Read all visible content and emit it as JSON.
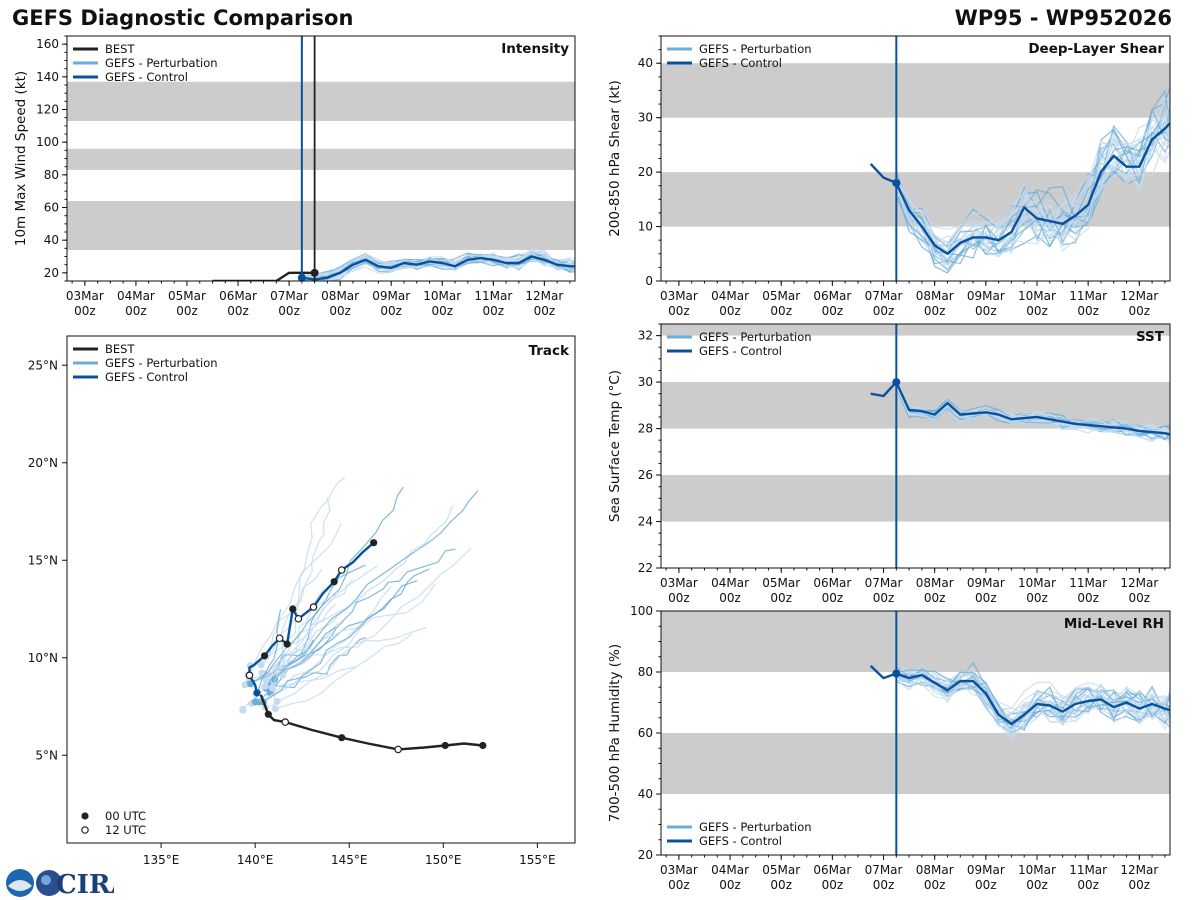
{
  "header": {
    "title": "GEFS Diagnostic Comparison",
    "storm_id": "WP95 - WP952026"
  },
  "logo": {
    "text": "CIRA"
  },
  "colors": {
    "best": "#222222",
    "perturbation": "#6baed6",
    "perturbation_light": "#c6dbef",
    "control": "#08519c",
    "band": "#cccccc"
  },
  "time_axis": {
    "categories": [
      "03Mar 00z",
      "04Mar 00z",
      "05Mar 00z",
      "06Mar 00z",
      "07Mar 00z",
      "08Mar 00z",
      "09Mar 00z",
      "10Mar 00z",
      "11Mar 00z",
      "12Mar 00z"
    ],
    "day_labels": [
      "03Mar",
      "04Mar",
      "05Mar",
      "06Mar",
      "07Mar",
      "08Mar",
      "09Mar",
      "10Mar",
      "11Mar",
      "12Mar"
    ],
    "hour_label": "00z",
    "range_days": [
      -0.35,
      9.6
    ],
    "current_time_day": 4.25,
    "best_end_day": 4.5
  },
  "chart_data": [
    {
      "id": "intensity",
      "type": "line",
      "title": "Intensity",
      "ylabel": "10m Max Wind Speed (kt)",
      "ylim": [
        15,
        165
      ],
      "yticks": [
        20,
        40,
        60,
        80,
        100,
        120,
        140,
        160
      ],
      "bands": [
        [
          34,
          64
        ],
        [
          83,
          96
        ],
        [
          113,
          137
        ]
      ],
      "legend": [
        "BEST",
        "GEFS - Perturbation",
        "GEFS - Control"
      ],
      "series": [
        {
          "name": "BEST",
          "x": [
            2.5,
            2.75,
            3,
            3.25,
            3.5,
            3.75,
            4,
            4.25,
            4.5
          ],
          "values": [
            15,
            15,
            15,
            15,
            15,
            15,
            20,
            20,
            20
          ]
        },
        {
          "name": "GEFS - Control",
          "x": [
            4.25,
            4.5,
            4.75,
            5,
            5.25,
            5.5,
            5.75,
            6,
            6.25,
            6.5,
            6.75,
            7,
            7.25,
            7.5,
            7.75,
            8,
            8.25,
            8.5,
            8.75,
            9,
            9.25,
            9.5,
            9.6
          ],
          "values": [
            17,
            16,
            17,
            20,
            25,
            28,
            24,
            23,
            26,
            25,
            27,
            26,
            24,
            28,
            29,
            28,
            26,
            26,
            30,
            28,
            25,
            24,
            24
          ]
        }
      ]
    },
    {
      "id": "shear",
      "type": "line",
      "title": "Deep-Layer Shear",
      "ylabel": "200-850 hPa Shear (kt)",
      "ylim": [
        0,
        45
      ],
      "yticks": [
        0,
        10,
        20,
        30,
        40
      ],
      "bands": [
        [
          10,
          20
        ],
        [
          30,
          40
        ]
      ],
      "legend": [
        "GEFS - Perturbation",
        "GEFS - Control"
      ],
      "series": [
        {
          "name": "GEFS - Control",
          "x": [
            3.75,
            4,
            4.25,
            4.5,
            4.75,
            5,
            5.25,
            5.5,
            5.75,
            6,
            6.25,
            6.5,
            6.75,
            7,
            7.25,
            7.5,
            7.75,
            8,
            8.25,
            8.5,
            8.75,
            9,
            9.25,
            9.5,
            9.6
          ],
          "values": [
            21.5,
            19,
            18,
            13,
            10,
            6.5,
            5,
            7,
            8,
            8,
            7.5,
            9,
            13.5,
            11.5,
            11,
            10.5,
            12,
            14,
            20,
            23,
            21,
            21,
            26,
            28,
            29
          ]
        }
      ]
    },
    {
      "id": "sst",
      "type": "line",
      "title": "SST",
      "ylabel": "Sea Surface Temp (°C)",
      "ylim": [
        22,
        32.5
      ],
      "yticks": [
        22,
        24,
        26,
        28,
        30,
        32
      ],
      "bands": [
        [
          24,
          26
        ],
        [
          28,
          30
        ],
        [
          32,
          34
        ]
      ],
      "legend": [
        "GEFS - Perturbation",
        "GEFS - Control"
      ],
      "series": [
        {
          "name": "GEFS - Control",
          "x": [
            3.75,
            4,
            4.25,
            4.5,
            4.75,
            5,
            5.25,
            5.5,
            5.75,
            6,
            6.25,
            6.5,
            6.75,
            7,
            7.25,
            7.5,
            7.75,
            8,
            8.25,
            8.5,
            8.75,
            9,
            9.25,
            9.5,
            9.6
          ],
          "values": [
            29.5,
            29.4,
            30,
            28.8,
            28.75,
            28.6,
            29.1,
            28.6,
            28.65,
            28.7,
            28.6,
            28.4,
            28.45,
            28.5,
            28.4,
            28.3,
            28.2,
            28.15,
            28.1,
            28.05,
            28,
            27.9,
            27.85,
            27.8,
            27.75
          ]
        }
      ]
    },
    {
      "id": "rh",
      "type": "line",
      "title": "Mid-Level RH",
      "ylabel": "700-500 hPa Humidity (%)",
      "ylim": [
        20,
        100
      ],
      "yticks": [
        20,
        40,
        60,
        80,
        100
      ],
      "bands": [
        [
          40,
          60
        ],
        [
          80,
          100
        ]
      ],
      "legend": [
        "GEFS - Perturbation",
        "GEFS - Control"
      ],
      "series": [
        {
          "name": "GEFS - Control",
          "x": [
            3.75,
            4,
            4.25,
            4.5,
            4.75,
            5,
            5.25,
            5.5,
            5.75,
            6,
            6.25,
            6.5,
            6.75,
            7,
            7.25,
            7.5,
            7.75,
            8,
            8.25,
            8.5,
            8.75,
            9,
            9.25,
            9.5,
            9.6
          ],
          "values": [
            82,
            78,
            79.5,
            78,
            79,
            76.5,
            74,
            77,
            77,
            73,
            66,
            63,
            66,
            69.5,
            69,
            67,
            69.5,
            70.5,
            71,
            68.5,
            70,
            68,
            69.5,
            68,
            67.5
          ]
        }
      ]
    },
    {
      "id": "track",
      "type": "scatter",
      "title": "Track",
      "xlim": [
        130,
        157
      ],
      "ylim": [
        0.5,
        26.5
      ],
      "xticks": [
        135,
        140,
        145,
        150,
        155
      ],
      "xticklabels": [
        "135°E",
        "140°E",
        "145°E",
        "150°E",
        "155°E"
      ],
      "yticks": [
        5,
        10,
        15,
        20,
        25
      ],
      "yticklabels": [
        "5°N",
        "10°N",
        "15°N",
        "20°N",
        "25°N"
      ],
      "legend": [
        "BEST",
        "GEFS - Perturbation",
        "GEFS - Control"
      ],
      "marker_legend": [
        "00 UTC",
        "12 UTC"
      ],
      "best_track": {
        "lon": [
          152.1,
          151.1,
          150.1,
          149.0,
          147.6,
          146.0,
          144.6,
          143.0,
          141.6,
          141.0,
          140.7,
          140.5,
          140.3
        ],
        "lat": [
          5.5,
          5.6,
          5.5,
          5.4,
          5.3,
          5.6,
          5.9,
          6.3,
          6.7,
          6.8,
          7.1,
          7.6,
          8.1
        ],
        "utc00_idx": [
          0,
          2,
          6,
          10
        ],
        "utc12_idx": [
          4,
          8
        ]
      },
      "control_track": {
        "lon": [
          140.1,
          140.0,
          139.7,
          139.7,
          139.9,
          140.5,
          140.9,
          141.3,
          141.7,
          142.0,
          142.3,
          142.7,
          143.1,
          143.6,
          144.2,
          144.6,
          145.2,
          145.7,
          146.3
        ],
        "lat": [
          8.2,
          8.6,
          9.1,
          9.5,
          9.6,
          10.1,
          10.6,
          11.0,
          10.7,
          12.5,
          12.0,
          12.3,
          12.6,
          13.3,
          13.9,
          14.5,
          14.9,
          15.4,
          15.9
        ],
        "utc00_idx": [
          0,
          5,
          8,
          14,
          18
        ],
        "utc12_idx": [
          2,
          7,
          10,
          12,
          15
        ],
        "black_dot_idx": [
          9
        ]
      }
    }
  ]
}
